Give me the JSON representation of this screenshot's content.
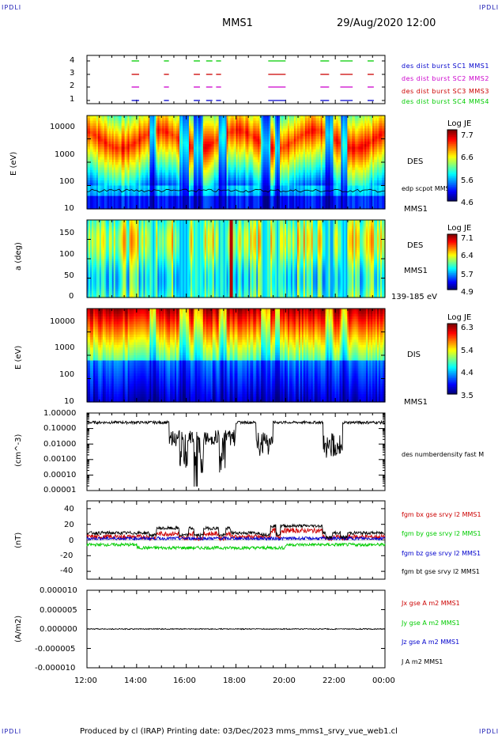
{
  "corners": {
    "tl": "IPDLI",
    "tr": "IPDLI",
    "bl": "IPDLI",
    "br": "IPDLI"
  },
  "header": {
    "title": "MMS1",
    "date": "29/Aug/2020 12:00"
  },
  "footer": {
    "text": "Produced by cl (IRAP)   Printing date: 03/Dec/2023   mms_mms1_srvy_vue_web1.cl"
  },
  "colors": {
    "red": "#cc0000",
    "green": "#00cc00",
    "blue": "#0000cc",
    "magenta": "#cc00cc",
    "black": "#000000"
  },
  "chart_data": [
    {
      "type": "timeline",
      "yticks": [
        "1",
        "2",
        "3",
        "4"
      ],
      "labels": [
        {
          "text": "des dist burst SC1 MMS1",
          "color": "#0000cc"
        },
        {
          "text": "des dist burst SC2 MMS2",
          "color": "#cc00cc"
        },
        {
          "text": "des dist burst SC3 MMS3",
          "color": "#cc0000"
        },
        {
          "text": "des dist burst SC4 MMS4",
          "color": "#00cc00"
        }
      ],
      "intervals": [
        [
          13.8,
          14.1
        ],
        [
          15.1,
          15.3
        ],
        [
          16.3,
          16.55
        ],
        [
          16.8,
          17.05
        ],
        [
          17.2,
          17.4
        ],
        [
          19.3,
          20.0
        ],
        [
          21.4,
          21.75
        ],
        [
          22.2,
          22.7
        ],
        [
          23.3,
          23.55
        ]
      ]
    },
    {
      "type": "heatmap",
      "ylabel": "E (eV)",
      "yticks": [
        "10",
        "100",
        "1000",
        "10000"
      ],
      "right_labels": [
        "DES",
        "edp scpot MMS1",
        "MMS1"
      ],
      "colorbar": {
        "title": "Log JE",
        "ticks": [
          "7.7",
          "6.6",
          "5.6",
          "4.6"
        ]
      }
    },
    {
      "type": "heatmap",
      "ylabel": "a (deg)",
      "yticks": [
        "0",
        "50",
        "100",
        "150"
      ],
      "right_labels": [
        "DES",
        "MMS1",
        "139-185 eV"
      ],
      "colorbar": {
        "title": "Log JE",
        "ticks": [
          "7.1",
          "6.4",
          "5.7",
          "4.9"
        ]
      }
    },
    {
      "type": "heatmap",
      "ylabel": "E (eV)",
      "yticks": [
        "10",
        "100",
        "1000",
        "10000"
      ],
      "right_labels": [
        "DIS",
        "MMS1"
      ],
      "colorbar": {
        "title": "Log JE",
        "ticks": [
          "6.3",
          "5.4",
          "4.4",
          "3.5"
        ]
      }
    },
    {
      "type": "line",
      "ylabel": "(cm^-3)",
      "yticks": [
        "1.00000",
        "0.10000",
        "0.01000",
        "0.00100",
        "0.00010",
        "0.00001"
      ],
      "series": [
        {
          "name": "des numberdensity fast M",
          "color": "#000000"
        }
      ]
    },
    {
      "type": "line",
      "ylabel": "(nT)",
      "yticks": [
        "40",
        "20",
        "0",
        "-20",
        "-40"
      ],
      "ylim": [
        -50,
        50
      ],
      "series": [
        {
          "name": "fgm bx gse srvy l2 MMS1",
          "color": "#cc0000"
        },
        {
          "name": "fgm by gse srvy l2 MMS1",
          "color": "#00cc00"
        },
        {
          "name": "fgm bz gse srvy l2 MMS1",
          "color": "#0000cc"
        },
        {
          "name": "fgm bt gse srvy l2 MMS1",
          "color": "#000000"
        }
      ]
    },
    {
      "type": "line",
      "ylabel": "(A/m2)",
      "yticks": [
        "0.000010",
        "0.000005",
        "0.000000",
        "-0.000005",
        "-0.000010"
      ],
      "ylim": [
        -1e-05,
        1e-05
      ],
      "series": [
        {
          "name": "Jx gse A m2 MMS1",
          "color": "#cc0000"
        },
        {
          "name": "Jy gse A m2 MMS1",
          "color": "#00cc00"
        },
        {
          "name": "Jz gse A m2 MMS1",
          "color": "#0000cc"
        },
        {
          "name": "J A m2 MMS1",
          "color": "#000000"
        }
      ]
    }
  ],
  "xaxis": {
    "ticks": [
      "12:00",
      "14:00",
      "16:00",
      "18:00",
      "20:00",
      "22:00",
      "00:00"
    ]
  }
}
